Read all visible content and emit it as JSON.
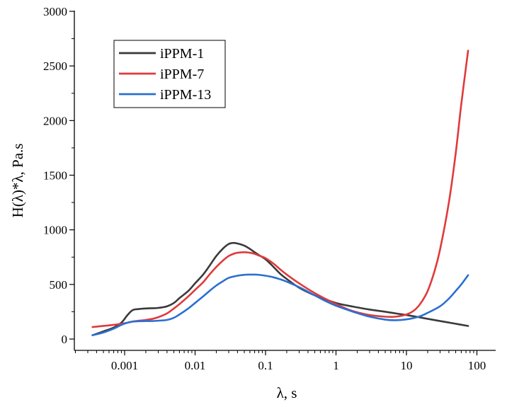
{
  "chart_data": {
    "type": "line",
    "title": "",
    "xlabel": "λ, s",
    "ylabel": "H(λ)*λ, Pa.s",
    "xscale": "log",
    "xlim": [
      0.0003,
      100
    ],
    "ylim": [
      0,
      3000
    ],
    "x_ticks": [
      0.001,
      0.01,
      0.1,
      1,
      10,
      100
    ],
    "x_tick_labels": [
      "0.001",
      "0.01",
      "0.1",
      "1",
      "10",
      "100"
    ],
    "y_ticks": [
      0,
      500,
      1000,
      1500,
      2000,
      2500,
      3000
    ],
    "y_tick_labels": [
      "0",
      "500",
      "1000",
      "1500",
      "2000",
      "2500",
      "3000"
    ],
    "legend_position": "top-left",
    "grid": false,
    "series": [
      {
        "name": "iPPM-1",
        "color": "#3a3a3a",
        "x": [
          0.00035,
          0.0005,
          0.0007,
          0.0009,
          0.0011,
          0.0013,
          0.0016,
          0.002,
          0.0025,
          0.003,
          0.004,
          0.005,
          0.006,
          0.008,
          0.01,
          0.013,
          0.016,
          0.02,
          0.025,
          0.03,
          0.035,
          0.04,
          0.05,
          0.06,
          0.07,
          0.08,
          0.1,
          0.13,
          0.16,
          0.2,
          0.3,
          0.5,
          0.7,
          1,
          1.5,
          2,
          3,
          5,
          7,
          10,
          15,
          20,
          30,
          50,
          75
        ],
        "y": [
          35,
          70,
          105,
          150,
          220,
          265,
          275,
          280,
          282,
          285,
          300,
          330,
          375,
          440,
          510,
          590,
          670,
          760,
          830,
          870,
          880,
          875,
          855,
          825,
          795,
          770,
          730,
          660,
          600,
          550,
          470,
          400,
          365,
          330,
          305,
          290,
          270,
          250,
          235,
          220,
          200,
          185,
          165,
          140,
          120
        ]
      },
      {
        "name": "iPPM-7",
        "color": "#e03a3a",
        "x": [
          0.00035,
          0.0005,
          0.0007,
          0.0009,
          0.0011,
          0.0013,
          0.0016,
          0.002,
          0.0025,
          0.003,
          0.004,
          0.005,
          0.006,
          0.008,
          0.01,
          0.013,
          0.016,
          0.02,
          0.025,
          0.03,
          0.035,
          0.04,
          0.05,
          0.06,
          0.07,
          0.08,
          0.1,
          0.13,
          0.16,
          0.2,
          0.3,
          0.5,
          0.7,
          1,
          1.5,
          2,
          3,
          5,
          7,
          10,
          13,
          16,
          20,
          25,
          30,
          40,
          50,
          60,
          75
        ],
        "y": [
          110,
          120,
          130,
          140,
          150,
          160,
          168,
          175,
          185,
          200,
          235,
          280,
          320,
          390,
          450,
          520,
          590,
          660,
          720,
          760,
          780,
          790,
          795,
          790,
          780,
          765,
          740,
          690,
          640,
          590,
          510,
          420,
          370,
          320,
          270,
          245,
          220,
          205,
          205,
          225,
          265,
          330,
          440,
          620,
          820,
          1250,
          1700,
          2150,
          2640
        ]
      },
      {
        "name": "iPPM-13",
        "color": "#2c6fd0",
        "x": [
          0.00035,
          0.0005,
          0.0007,
          0.0009,
          0.0011,
          0.0013,
          0.0016,
          0.002,
          0.0025,
          0.003,
          0.004,
          0.005,
          0.006,
          0.008,
          0.01,
          0.013,
          0.016,
          0.02,
          0.025,
          0.03,
          0.04,
          0.05,
          0.06,
          0.07,
          0.08,
          0.1,
          0.13,
          0.16,
          0.2,
          0.3,
          0.5,
          0.7,
          1,
          1.5,
          2,
          3,
          5,
          7,
          10,
          15,
          20,
          30,
          40,
          50,
          60,
          75
        ],
        "y": [
          35,
          60,
          95,
          130,
          150,
          160,
          163,
          165,
          165,
          168,
          175,
          195,
          225,
          280,
          330,
          390,
          440,
          490,
          530,
          560,
          580,
          588,
          590,
          590,
          588,
          580,
          565,
          548,
          525,
          475,
          400,
          350,
          305,
          265,
          238,
          205,
          178,
          172,
          180,
          205,
          240,
          300,
          370,
          440,
          500,
          585
        ]
      }
    ]
  }
}
